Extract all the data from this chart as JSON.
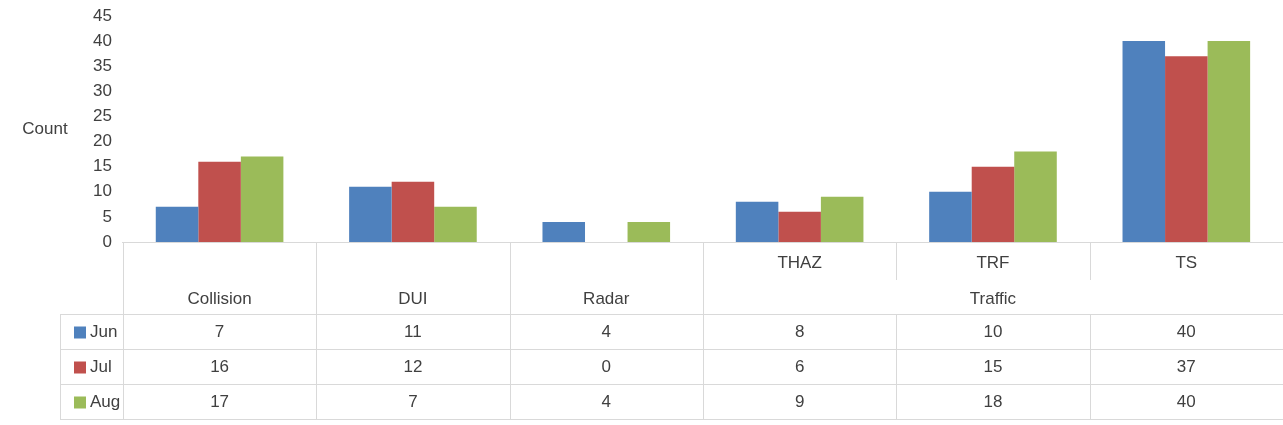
{
  "chart_data": {
    "type": "bar",
    "ylabel": "Count",
    "categories": [
      "Collision",
      "DUI",
      "Radar",
      "THAZ",
      "TRF",
      "TS"
    ],
    "series": [
      {
        "name": "Jun",
        "color": "#4f81bd",
        "values": [
          7,
          11,
          4,
          8,
          10,
          40
        ]
      },
      {
        "name": "Jul",
        "color": "#c0504d",
        "values": [
          16,
          12,
          0,
          6,
          15,
          37
        ]
      },
      {
        "name": "Aug",
        "color": "#9bbb59",
        "values": [
          17,
          7,
          4,
          9,
          18,
          40
        ]
      }
    ],
    "annotations": [
      "Traffic"
    ],
    "ylim": [
      0,
      45
    ],
    "yticks": [
      0,
      5,
      10,
      15,
      20,
      25,
      30,
      35,
      40,
      45
    ],
    "grid": false,
    "legend": "bottom left",
    "data_labels": true
  }
}
